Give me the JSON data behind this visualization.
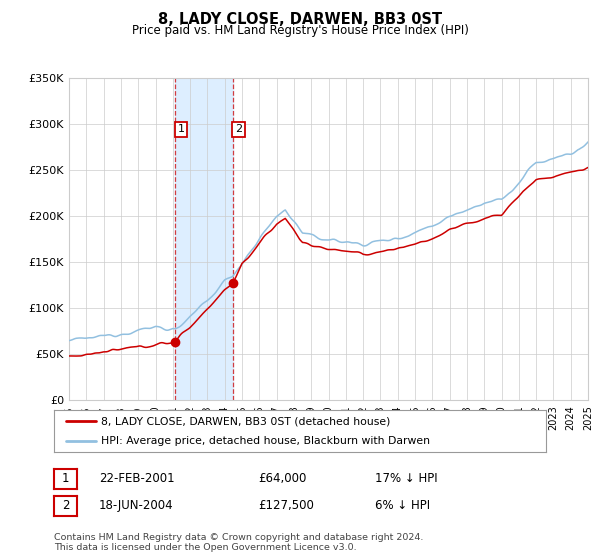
{
  "title": "8, LADY CLOSE, DARWEN, BB3 0ST",
  "subtitle": "Price paid vs. HM Land Registry's House Price Index (HPI)",
  "legend_line1": "8, LADY CLOSE, DARWEN, BB3 0ST (detached house)",
  "legend_line2": "HPI: Average price, detached house, Blackburn with Darwen",
  "transaction1": {
    "label": "1",
    "date": "22-FEB-2001",
    "price": "£64,000",
    "hpi_pct": "17% ↓ HPI",
    "x_year": 2001.13,
    "y_val": 64000
  },
  "transaction2": {
    "label": "2",
    "date": "18-JUN-2004",
    "price": "£127,500",
    "hpi_pct": "6% ↓ HPI",
    "x_year": 2004.46,
    "y_val": 127500
  },
  "x_start": 1995,
  "x_end": 2025,
  "y_min": 0,
  "y_max": 350000,
  "hpi_line_color": "#92c0e0",
  "price_line_color": "#cc0000",
  "shade_color": "#ddeeff",
  "grid_color": "#cccccc",
  "background_color": "#ffffff",
  "footnote_line1": "Contains HM Land Registry data © Crown copyright and database right 2024.",
  "footnote_line2": "This data is licensed under the Open Government Licence v3.0.",
  "yticks": [
    0,
    50000,
    100000,
    150000,
    200000,
    250000,
    300000,
    350000
  ],
  "ytick_labels": [
    "£0",
    "£50K",
    "£100K",
    "£150K",
    "£200K",
    "£250K",
    "£300K",
    "£350K"
  ],
  "xticks": [
    1995,
    1996,
    1997,
    1998,
    1999,
    2000,
    2001,
    2002,
    2003,
    2004,
    2005,
    2006,
    2007,
    2008,
    2009,
    2010,
    2011,
    2012,
    2013,
    2014,
    2015,
    2016,
    2017,
    2018,
    2019,
    2020,
    2021,
    2022,
    2023,
    2024,
    2025
  ]
}
